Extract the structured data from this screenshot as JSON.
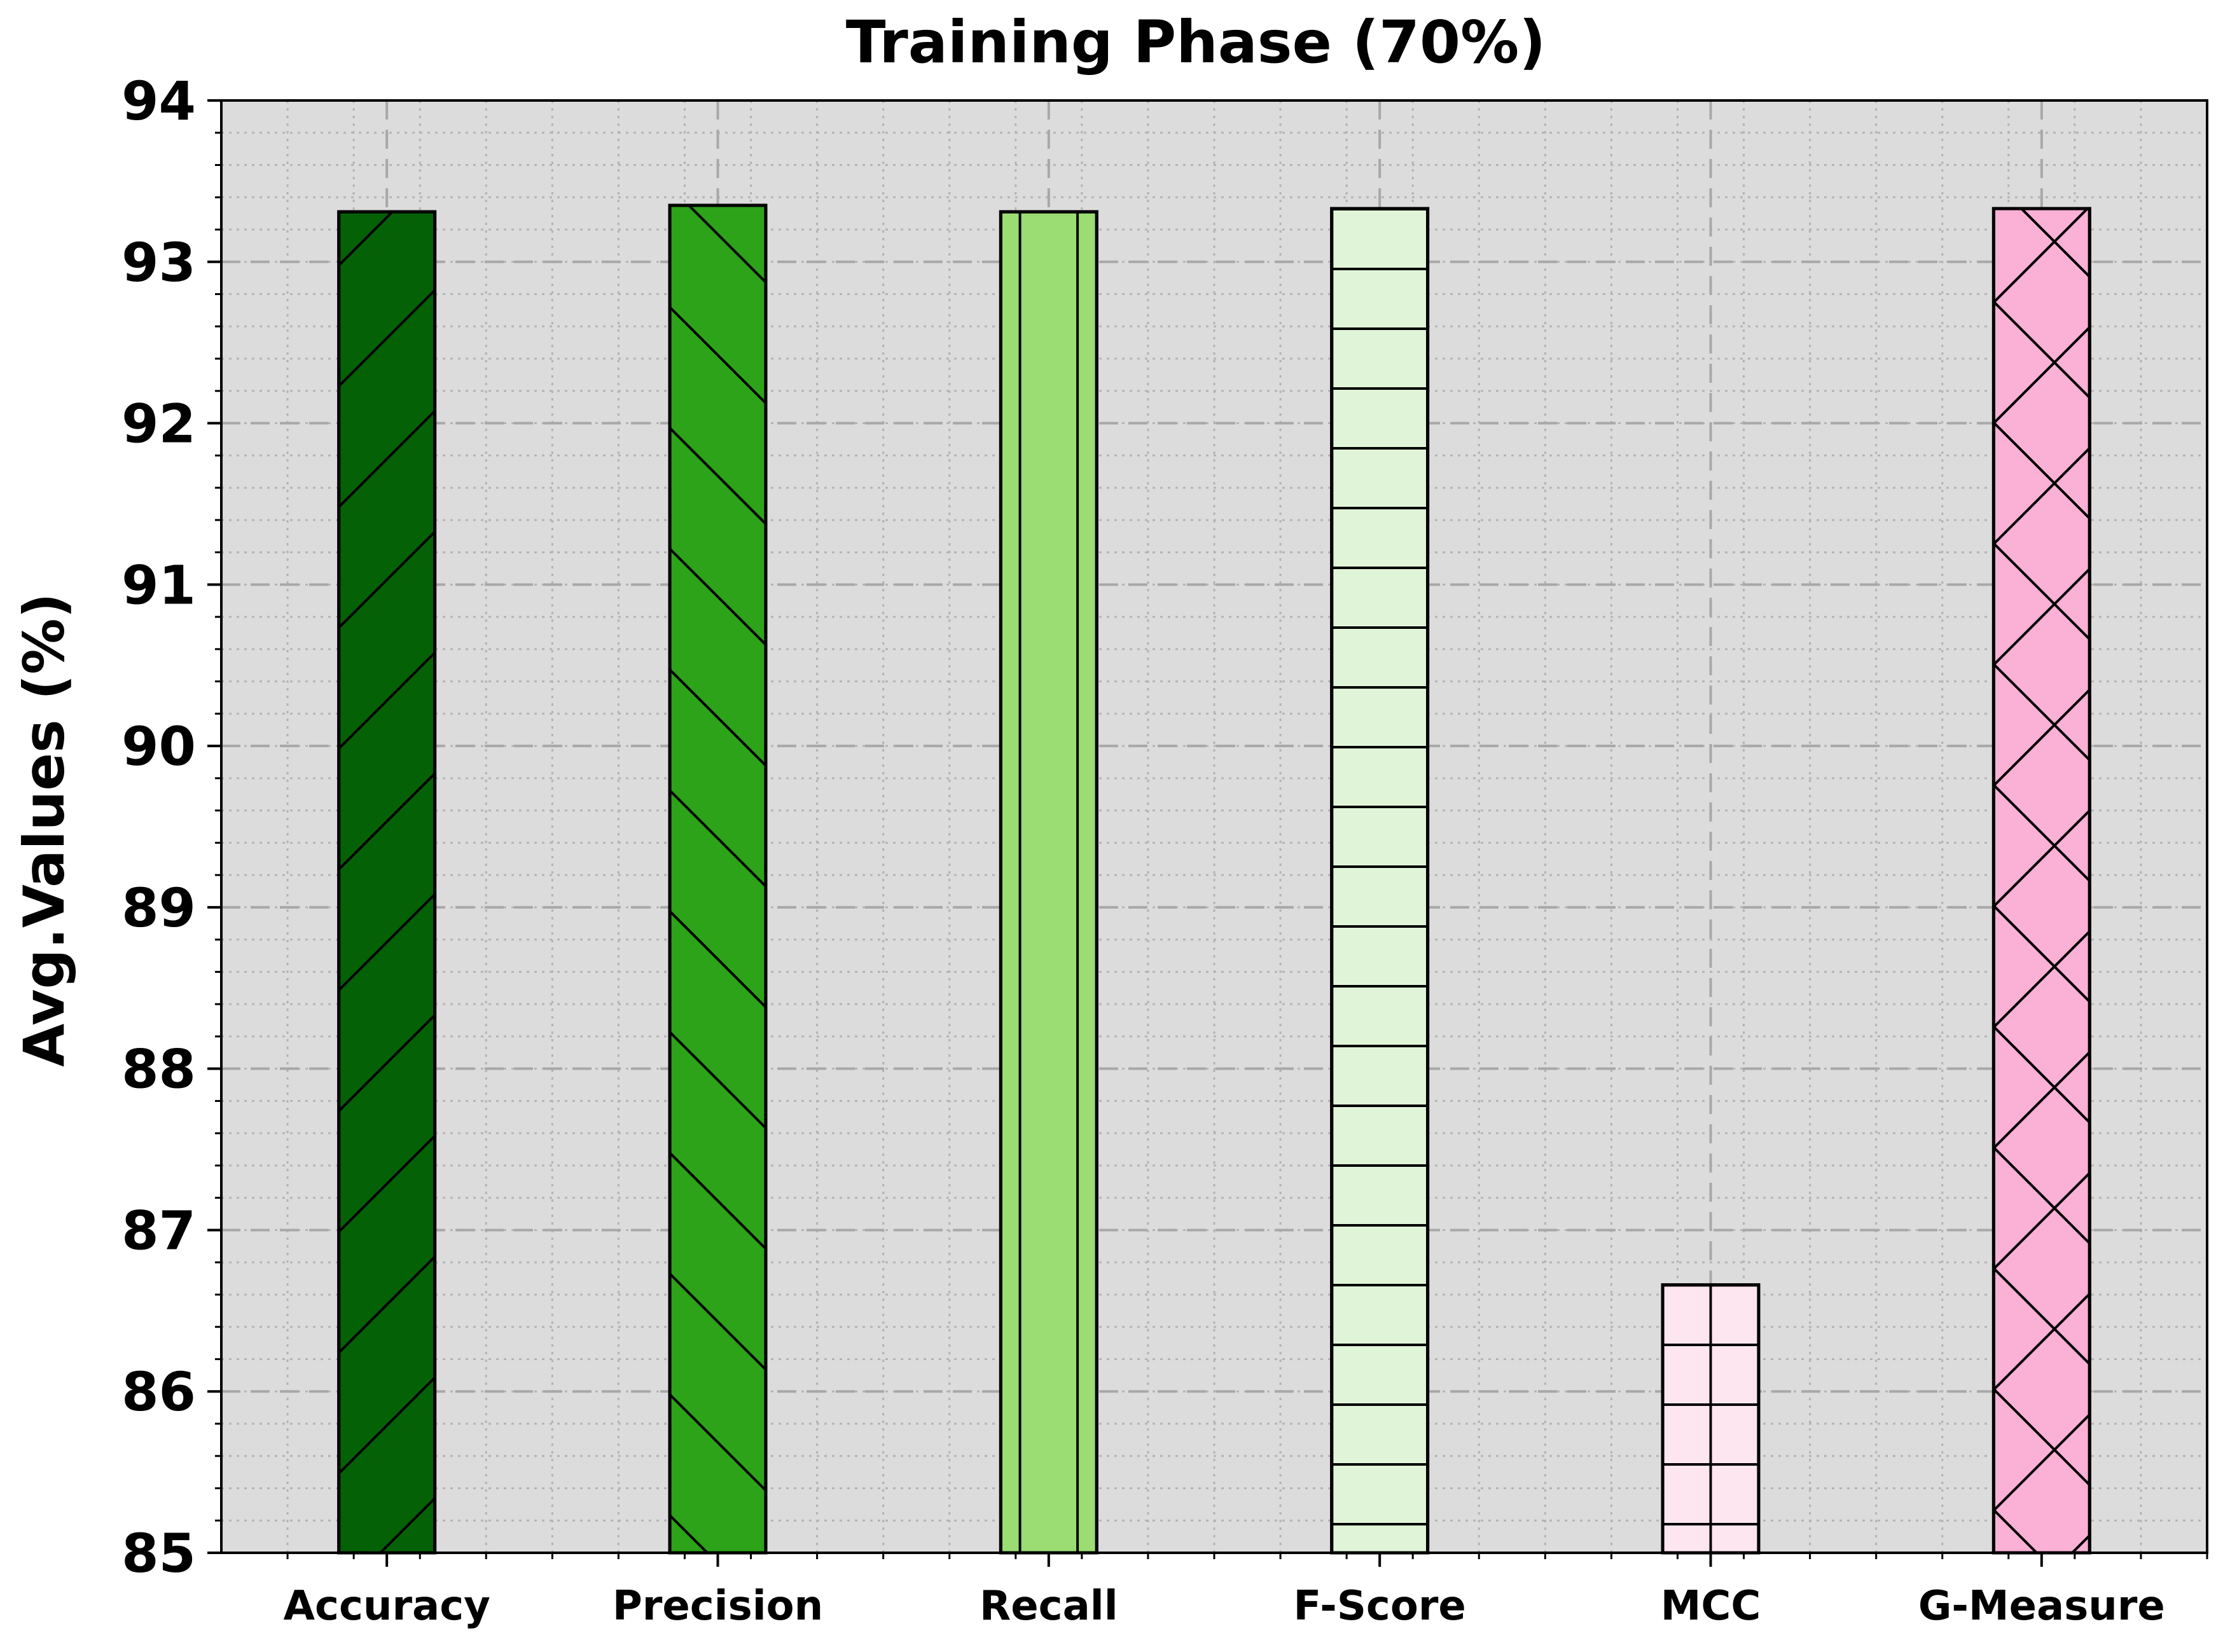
{
  "chart_data": {
    "type": "bar",
    "title": "Training Phase (70%)",
    "xlabel": "",
    "ylabel": "Avg.Values (%)",
    "categories": [
      "Accuracy",
      "Precision",
      "Recall",
      "F-Score",
      "MCC",
      "G-Measure"
    ],
    "values": [
      93.31,
      93.35,
      93.31,
      93.33,
      86.66,
      93.33
    ],
    "ylim": [
      85,
      94
    ],
    "yticks": [
      "85",
      "86",
      "87",
      "88",
      "89",
      "90",
      "91",
      "92",
      "93",
      "94"
    ],
    "grid": true,
    "legend": "none",
    "bar_colors": [
      "#056105",
      "#2ca318",
      "#9bdc73",
      "#e0f4d8",
      "#fde6ef",
      "#fbb0d6"
    ],
    "bar_hatches": [
      "slash",
      "backslash",
      "vertical",
      "horizontal",
      "grid",
      "cross"
    ],
    "plot_background": "#dcdcdc"
  }
}
